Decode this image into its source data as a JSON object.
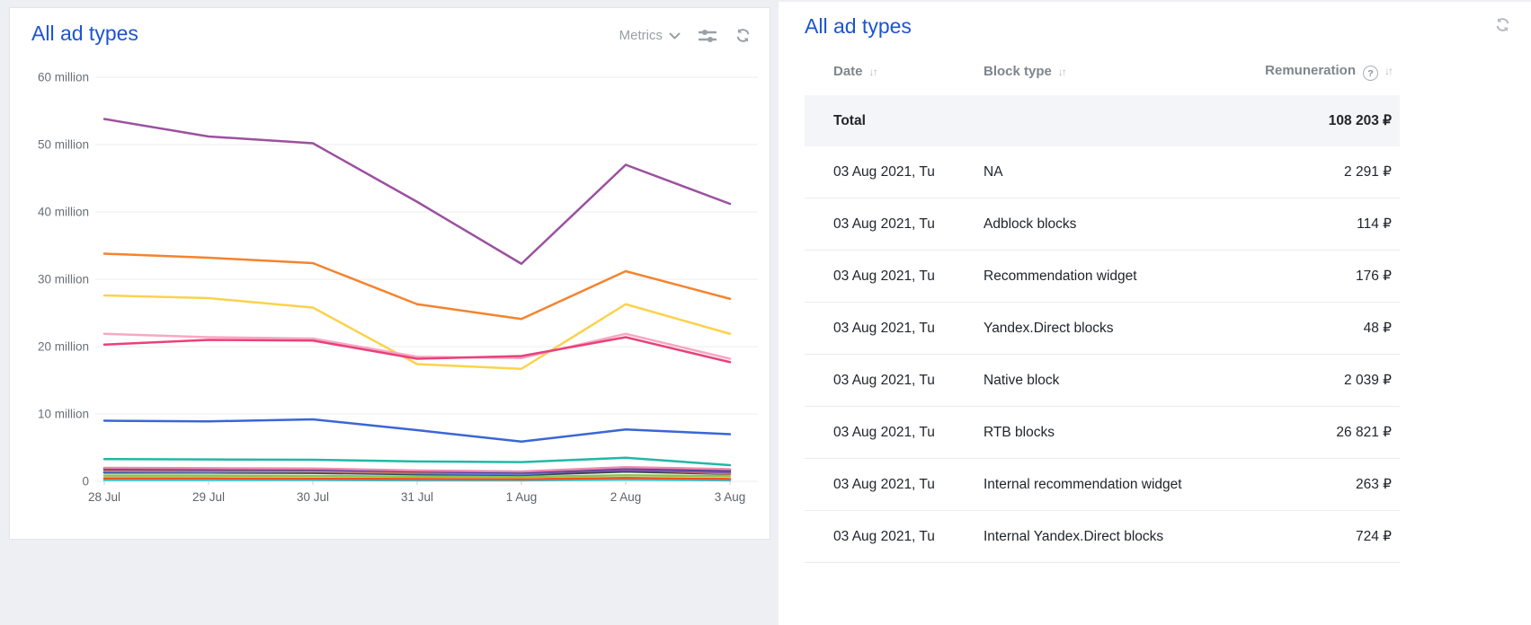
{
  "page": {
    "background": "#edeff2",
    "accent_blue": "#1b55d3"
  },
  "left_panel": {
    "title": "All ad types",
    "metrics_label": "Metrics",
    "icons": [
      "chevron-down-icon",
      "sliders-icon",
      "refresh-icon"
    ]
  },
  "chart_data": {
    "type": "line",
    "x": [
      "28 Jul",
      "29 Jul",
      "30 Jul",
      "31 Jul",
      "1 Aug",
      "2 Aug",
      "3 Aug"
    ],
    "y_tick_labels": [
      "60 million",
      "50 million",
      "40 million",
      "30 million",
      "20 million",
      "10 million",
      "0"
    ],
    "y_unit": "million",
    "ylim_million": [
      0,
      60
    ],
    "grid": true,
    "legend": "none",
    "series": [
      {
        "name": "cyan",
        "color": "#35c4d7",
        "values_million": [
          0.2,
          0.2,
          0.2,
          0.15,
          0.15,
          0.25,
          0.15
        ]
      },
      {
        "name": "red",
        "color": "#f4511e",
        "values_million": [
          0.45,
          0.45,
          0.4,
          0.35,
          0.3,
          0.5,
          0.35
        ]
      },
      {
        "name": "green",
        "color": "#8bc34a",
        "values_million": [
          0.85,
          0.85,
          0.8,
          0.7,
          0.65,
          0.9,
          0.75
        ]
      },
      {
        "name": "dark-slate",
        "color": "#37474f",
        "values_million": [
          1.3,
          1.3,
          1.25,
          1.05,
          0.95,
          1.45,
          1.1
        ]
      },
      {
        "name": "blue-2",
        "color": "#4a7bf7",
        "values_million": [
          1.45,
          1.4,
          1.45,
          1.2,
          1.05,
          1.9,
          1.5
        ]
      },
      {
        "name": "orange-2",
        "color": "#ef7e2e",
        "values_million": [
          1.6,
          1.55,
          1.5,
          1.35,
          1.2,
          1.75,
          1.15
        ]
      },
      {
        "name": "violet",
        "color": "#7b52ab",
        "values_million": [
          1.75,
          1.7,
          1.7,
          1.45,
          1.25,
          1.65,
          1.35
        ]
      },
      {
        "name": "navy",
        "color": "#2d3a8c",
        "values_million": [
          1.9,
          1.85,
          1.8,
          1.5,
          1.35,
          2.0,
          1.65
        ]
      },
      {
        "name": "pink-2",
        "color": "#ef87ae",
        "values_million": [
          2.0,
          1.95,
          1.9,
          1.6,
          1.45,
          2.1,
          1.8
        ]
      },
      {
        "name": "teal",
        "color": "#21b8a6",
        "values_million": [
          3.3,
          3.25,
          3.2,
          2.95,
          2.85,
          3.5,
          2.4
        ]
      },
      {
        "name": "blue",
        "color": "#3a66d6",
        "values_million": [
          9.0,
          8.9,
          9.2,
          7.6,
          5.9,
          7.7,
          7.0
        ]
      },
      {
        "name": "yellow",
        "color": "#fcd24c",
        "values_million": [
          27.6,
          27.2,
          25.8,
          17.4,
          16.7,
          26.3,
          21.9
        ]
      },
      {
        "name": "light-pink",
        "color": "#f8a8c2",
        "values_million": [
          21.9,
          21.4,
          21.2,
          18.5,
          18.3,
          21.9,
          18.2
        ]
      },
      {
        "name": "crimson",
        "color": "#e8417c",
        "values_million": [
          20.3,
          21.0,
          20.9,
          18.2,
          18.6,
          21.4,
          17.7
        ]
      },
      {
        "name": "orange",
        "color": "#f5832c",
        "values_million": [
          33.8,
          33.2,
          32.4,
          26.3,
          24.1,
          31.2,
          27.1
        ]
      },
      {
        "name": "purple",
        "color": "#9b51a0",
        "values_million": [
          53.8,
          51.2,
          50.2,
          41.5,
          32.3,
          47.0,
          41.2
        ]
      }
    ]
  },
  "right_panel": {
    "title": "All ad types",
    "icons": [
      "refresh-icon"
    ],
    "table": {
      "columns": [
        {
          "label": "Date",
          "sortable": true,
          "help": false
        },
        {
          "label": "Block type",
          "sortable": true,
          "help": false
        },
        {
          "label": "Remuneration",
          "sortable": true,
          "help": true
        }
      ],
      "sort_glyph": "↓↑",
      "help_glyph": "?",
      "total_row": {
        "label": "Total",
        "value": "108 203 ₽"
      },
      "rows": [
        {
          "date": "03 Aug 2021, Tu",
          "block_type": "NA",
          "remuneration": "2 291 ₽"
        },
        {
          "date": "03 Aug 2021, Tu",
          "block_type": "Adblock blocks",
          "remuneration": "114 ₽"
        },
        {
          "date": "03 Aug 2021, Tu",
          "block_type": "Recommendation widget",
          "remuneration": "176 ₽"
        },
        {
          "date": "03 Aug 2021, Tu",
          "block_type": "Yandex.Direct blocks",
          "remuneration": "48 ₽"
        },
        {
          "date": "03 Aug 2021, Tu",
          "block_type": "Native block",
          "remuneration": "2 039 ₽"
        },
        {
          "date": "03 Aug 2021, Tu",
          "block_type": "RTB blocks",
          "remuneration": "26 821 ₽"
        },
        {
          "date": "03 Aug 2021, Tu",
          "block_type": "Internal recommendation widget",
          "remuneration": "263 ₽"
        },
        {
          "date": "03 Aug 2021, Tu",
          "block_type": "Internal Yandex.Direct blocks",
          "remuneration": "724 ₽"
        }
      ]
    }
  }
}
